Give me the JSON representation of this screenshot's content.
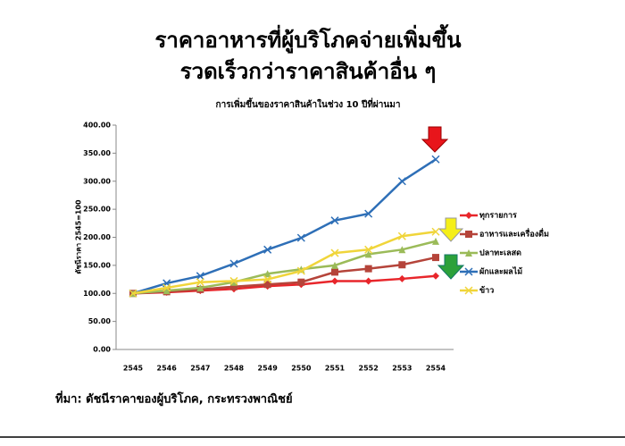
{
  "chart_data": {
    "type": "line",
    "title": [
      "ราคาอาหารที่ผู้บริโภคจ่ายเพิ่มขึ้น",
      "รวดเร็วกว่าราคาสินค้าอื่น ๆ"
    ],
    "subtitle": "การเพิ่มขึ้นของราคาสินค้าในช่วง 10 ปีที่ผ่านมา",
    "y_label": "ดัชนีราคา 2545=100",
    "source": "ที่มา: ดัชนีราคาของผู้บริโภค, กระทรวงพาณิชย์",
    "categories": [
      "2545",
      "2546",
      "2547",
      "2548",
      "2549",
      "2550",
      "2551",
      "2552",
      "2553",
      "2554"
    ],
    "ylim": [
      0,
      400
    ],
    "yticks": [
      {
        "value": 0,
        "label": "0.00"
      },
      {
        "value": 50,
        "label": "50.00"
      },
      {
        "value": 100,
        "label": "100.00"
      },
      {
        "value": 150,
        "label": "150.00"
      },
      {
        "value": 200,
        "label": "200.00"
      },
      {
        "value": 250,
        "label": "250.00"
      },
      {
        "value": 300,
        "label": "300.00"
      },
      {
        "value": 350,
        "label": "350.00"
      },
      {
        "value": 400,
        "label": "400.00"
      }
    ],
    "grid": false,
    "series": [
      {
        "name": "ทุกรายการ",
        "color": "#e8262b",
        "marker": "diamond",
        "values": [
          100,
          102,
          105,
          108,
          113,
          116,
          122,
          122,
          126,
          131
        ]
      },
      {
        "name": "อาหารและเครื่องดื่ม",
        "color": "#b5443a",
        "marker": "square",
        "values": [
          100,
          103,
          107,
          112,
          116,
          120,
          138,
          144,
          151,
          164
        ]
      },
      {
        "name": "ปลาทะเลสด",
        "color": "#9bbb59",
        "marker": "triangle",
        "values": [
          100,
          105,
          110,
          120,
          135,
          143,
          150,
          170,
          178,
          193
        ]
      },
      {
        "name": "ผักและผลไม้",
        "color": "#2e6fb7",
        "marker": "x",
        "values": [
          100,
          118,
          131,
          153,
          178,
          199,
          230,
          242,
          300,
          339
        ]
      },
      {
        "name": "ข้าว",
        "color": "#f0d53a",
        "marker": "x",
        "values": [
          100,
          110,
          120,
          122,
          125,
          140,
          172,
          178,
          202,
          210
        ]
      }
    ]
  }
}
